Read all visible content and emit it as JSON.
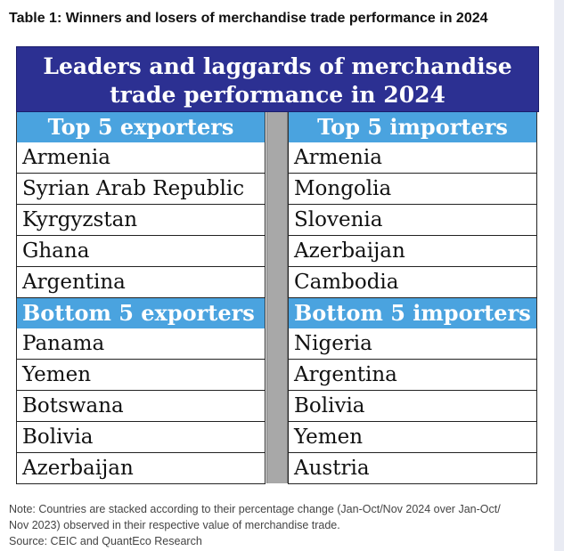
{
  "caption": "Table 1: Winners and losers of merchandise trade performance in 2024",
  "table": {
    "title_line1": "Leaders and laggards of merchandise",
    "title_line2": "trade performance in 2024",
    "top_exporters": {
      "header": "Top 5 exporters",
      "items": [
        "Armenia",
        "Syrian Arab Republic",
        "Kyrgyzstan",
        "Ghana",
        "Argentina"
      ]
    },
    "top_importers": {
      "header": "Top 5 importers",
      "items": [
        "Armenia",
        "Mongolia",
        "Slovenia",
        "Azerbaijan",
        "Cambodia"
      ]
    },
    "bottom_exporters": {
      "header": "Bottom 5 exporters",
      "items": [
        "Panama",
        "Yemen",
        "Botswana",
        "Bolivia",
        "Azerbaijan"
      ]
    },
    "bottom_importers": {
      "header": "Bottom 5 importers",
      "items": [
        "Nigeria",
        "Argentina",
        "Bolivia",
        "Yemen",
        "Austria"
      ]
    }
  },
  "note_line1": "Note: Countries are stacked according to their percentage change (Jan-Oct/Nov 2024 over Jan-Oct/",
  "note_line2": "Nov 2023) observed in their respective value of merchandise trade.",
  "source": "Source: CEIC and QuantEco Research",
  "colors": {
    "title_bg": "#2c3092",
    "section_bg": "#4aa3df",
    "divider": "#a8a8a8"
  }
}
